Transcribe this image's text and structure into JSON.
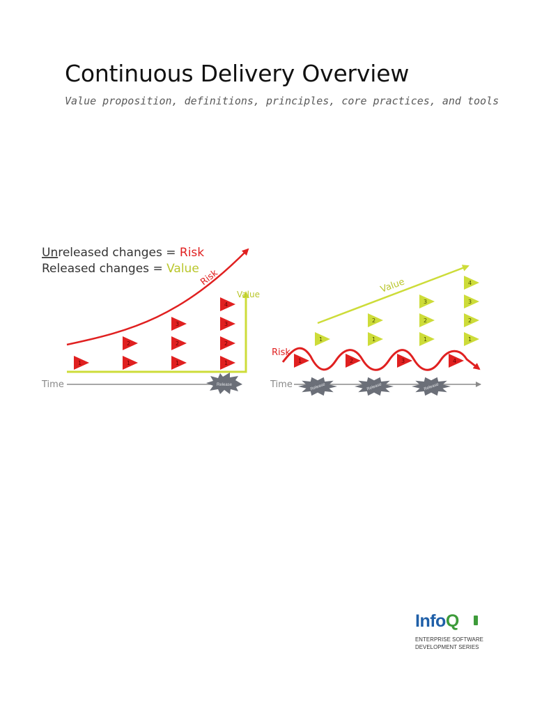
{
  "document": {
    "title": "Continuous Delivery Overview",
    "subtitle": "Value proposition, definitions, principles, core practices, and tools"
  },
  "illustration": {
    "legend": {
      "line1_prefix": "Un",
      "line1_mid": "released changes = ",
      "line1_risk": "Risk",
      "line2_mid": "Released changes = ",
      "line2_value": "Value"
    },
    "left_panel": {
      "risk_label": "Risk",
      "value_label": "Value",
      "time_label": "Time",
      "release_label": "Release",
      "columns": [
        {
          "changes": [
            "1"
          ]
        },
        {
          "changes": [
            "1",
            "2"
          ]
        },
        {
          "changes": [
            "1",
            "2",
            "3"
          ]
        },
        {
          "changes": [
            "1",
            "2",
            "3",
            "4"
          ]
        }
      ]
    },
    "right_panel": {
      "risk_label": "Risk",
      "value_label": "Value",
      "time_label": "Time",
      "release_label": "Release",
      "risk_markers": [
        "1",
        "2",
        "3",
        "4"
      ],
      "value_columns": [
        {
          "changes": [
            "1"
          ]
        },
        {
          "changes": [
            "1",
            "2"
          ]
        },
        {
          "changes": [
            "1",
            "2",
            "3"
          ]
        },
        {
          "changes": [
            "1",
            "2",
            "3",
            "4"
          ]
        }
      ]
    },
    "colors": {
      "risk": "#e02020",
      "value": "#cddc39",
      "axis": "#8a8a8a",
      "release_burst": "#6b6f78"
    }
  },
  "logo": {
    "word_part1": "Info",
    "word_part2": "Q",
    "tagline_line1": "ENTERPRISE SOFTWARE",
    "tagline_line2": "DEVELOPMENT SERIES"
  }
}
